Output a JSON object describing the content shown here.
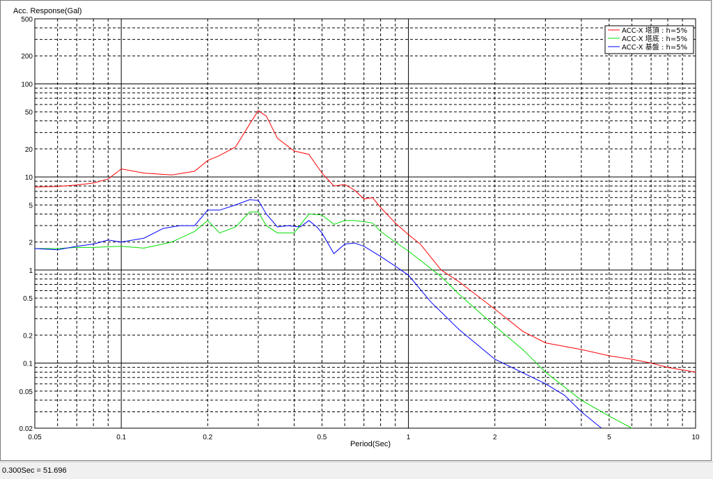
{
  "status_bar": {
    "text": "0.300Sec = 51.696"
  },
  "chart_data": {
    "type": "line",
    "xlabel": "Period(Sec)",
    "ylabel": "Acc. Response(Gal)",
    "x_scale": "log",
    "y_scale": "log",
    "xlim": [
      0.05,
      10
    ],
    "ylim": [
      0.02,
      500
    ],
    "x_ticks": [
      "0.05",
      "0.1",
      "0.2",
      "0.5",
      "1",
      "2",
      "5",
      "10"
    ],
    "y_ticks": [
      "500",
      "200",
      "100",
      "50",
      "20",
      "10",
      "5",
      "2",
      "1",
      "0.5",
      "0.2",
      "0.1",
      "0.05",
      "0.02"
    ],
    "grid": true,
    "legend_position": "top-right",
    "series": [
      {
        "name": "ACC-X 塔頂 : h=5%",
        "color": "#ff0000",
        "x": [
          0.05,
          0.06,
          0.07,
          0.08,
          0.09,
          0.1,
          0.12,
          0.15,
          0.18,
          0.2,
          0.22,
          0.25,
          0.28,
          0.3,
          0.32,
          0.35,
          0.4,
          0.45,
          0.5,
          0.55,
          0.6,
          0.65,
          0.7,
          0.75,
          0.8,
          0.9,
          1.0,
          1.1,
          1.3,
          1.5,
          2.0,
          2.5,
          3.0,
          4.0,
          5.0,
          6.0,
          7.0,
          8.0,
          10.0
        ],
        "y": [
          7.8,
          7.9,
          8.2,
          8.6,
          9.5,
          12.2,
          11.0,
          10.5,
          11.5,
          15.0,
          17.0,
          21.0,
          37.0,
          51.7,
          45.0,
          26.0,
          19.0,
          17.5,
          11.0,
          8.0,
          8.3,
          7.2,
          5.8,
          6.0,
          4.7,
          3.2,
          2.4,
          1.9,
          1.0,
          0.75,
          0.38,
          0.22,
          0.165,
          0.14,
          0.12,
          0.11,
          0.1,
          0.09,
          0.08
        ]
      },
      {
        "name": "ACC-X 塔底 : h=5%",
        "color": "#00dd00",
        "x": [
          0.05,
          0.06,
          0.07,
          0.08,
          0.09,
          0.1,
          0.12,
          0.15,
          0.18,
          0.2,
          0.22,
          0.25,
          0.28,
          0.3,
          0.32,
          0.35,
          0.4,
          0.45,
          0.5,
          0.55,
          0.6,
          0.65,
          0.7,
          0.75,
          0.8,
          0.9,
          1.0,
          1.3,
          1.5,
          2.0,
          2.5,
          3.0,
          4.0,
          5.0,
          6.0
        ],
        "y": [
          1.7,
          1.7,
          1.75,
          1.75,
          1.78,
          1.8,
          1.72,
          2.0,
          2.6,
          3.4,
          2.5,
          2.9,
          4.2,
          4.2,
          3.0,
          2.5,
          2.5,
          4.0,
          3.9,
          3.1,
          3.4,
          3.4,
          3.3,
          3.2,
          2.6,
          2.0,
          1.6,
          0.85,
          0.55,
          0.25,
          0.14,
          0.08,
          0.04,
          0.027,
          0.02
        ]
      },
      {
        "name": "ACC-X 基盤 : h=5%",
        "color": "#0000ff",
        "x": [
          0.05,
          0.06,
          0.07,
          0.08,
          0.09,
          0.1,
          0.12,
          0.14,
          0.16,
          0.18,
          0.2,
          0.22,
          0.25,
          0.28,
          0.3,
          0.32,
          0.35,
          0.38,
          0.42,
          0.45,
          0.48,
          0.5,
          0.55,
          0.6,
          0.65,
          0.7,
          0.8,
          0.9,
          1.0,
          1.2,
          1.5,
          2.0,
          3.0,
          3.5,
          4.0,
          4.7
        ],
        "y": [
          1.7,
          1.65,
          1.8,
          1.9,
          2.1,
          2.0,
          2.2,
          2.8,
          3.0,
          3.0,
          4.4,
          4.4,
          5.0,
          5.7,
          5.6,
          4.0,
          2.9,
          3.0,
          2.9,
          3.4,
          2.9,
          2.5,
          1.5,
          1.9,
          1.95,
          1.8,
          1.4,
          1.1,
          0.88,
          0.45,
          0.23,
          0.11,
          0.06,
          0.045,
          0.03,
          0.02
        ]
      }
    ]
  }
}
